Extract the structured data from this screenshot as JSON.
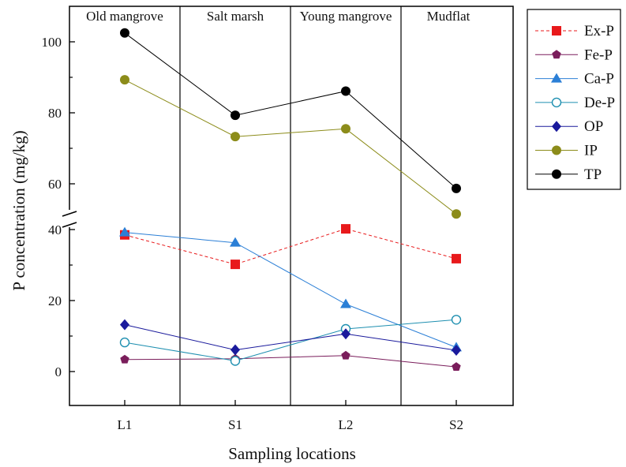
{
  "chart_data": {
    "type": "line",
    "xlabel": "Sampling locations",
    "ylabel": "P concentration (mg/kg)",
    "categories": [
      "L1",
      "S1",
      "L2",
      "S2"
    ],
    "regions": [
      "Old mangrove",
      "Salt marsh",
      "Young mangrove",
      "Mudflat"
    ],
    "y_axis": {
      "lower_segment": {
        "range": [
          -9,
          40
        ],
        "ticks": [
          0,
          20,
          40
        ]
      },
      "upper_segment": {
        "range": [
          48,
          109
        ],
        "ticks": [
          60,
          80,
          100
        ]
      },
      "broken": true
    },
    "legend_position": "right",
    "series": [
      {
        "name": "Ex-P",
        "values": [
          38.5,
          30.2,
          40.2,
          31.8
        ],
        "color": "#e8191b",
        "marker": "square",
        "line": "dashed",
        "segment": "lower"
      },
      {
        "name": "Fe-P",
        "values": [
          3.4,
          3.6,
          4.5,
          1.3
        ],
        "color": "#7a1d5b",
        "marker": "pentagon",
        "line": "solid",
        "segment": "lower"
      },
      {
        "name": "Ca-P",
        "values": [
          39.2,
          36.3,
          19.0,
          6.8
        ],
        "color": "#2b7fd6",
        "marker": "triangle",
        "line": "solid",
        "segment": "lower"
      },
      {
        "name": "De-P",
        "values": [
          8.2,
          3.0,
          12.0,
          14.6
        ],
        "color": "#1e8fb0",
        "marker": "open-circle",
        "line": "solid",
        "segment": "lower"
      },
      {
        "name": "OP",
        "values": [
          13.2,
          6.1,
          10.6,
          6.0
        ],
        "color": "#1a1a9c",
        "marker": "diamond",
        "line": "solid",
        "segment": "lower"
      },
      {
        "name": "IP",
        "values": [
          89.3,
          73.3,
          75.5,
          51.5
        ],
        "color": "#8c8c1a",
        "marker": "circle",
        "line": "solid",
        "segment": "upper"
      },
      {
        "name": "TP",
        "values": [
          102.5,
          79.3,
          86.1,
          58.7
        ],
        "color": "#000000",
        "marker": "circle",
        "line": "solid",
        "segment": "upper"
      }
    ]
  }
}
